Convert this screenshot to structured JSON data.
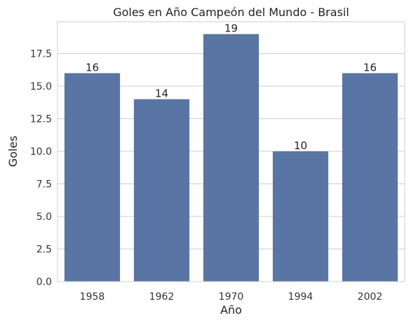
{
  "chart_data": {
    "type": "bar",
    "title": "Goles en Año Campeón del Mundo - Brasil",
    "xlabel": "Año",
    "ylabel": "Goles",
    "categories": [
      "1958",
      "1962",
      "1970",
      "1994",
      "2002"
    ],
    "values": [
      16,
      14,
      19,
      10,
      16
    ],
    "data_labels": [
      "16",
      "14",
      "19",
      "10",
      "16"
    ],
    "ylim": [
      0,
      19.95
    ],
    "yticks": [
      0.0,
      2.5,
      5.0,
      7.5,
      10.0,
      12.5,
      15.0,
      17.5
    ],
    "ytick_labels": [
      "0.0",
      "2.5",
      "5.0",
      "7.5",
      "10.0",
      "12.5",
      "15.0",
      "17.5"
    ],
    "grid": "horizontal",
    "bar_color": "#5875a4",
    "legend": "none"
  }
}
